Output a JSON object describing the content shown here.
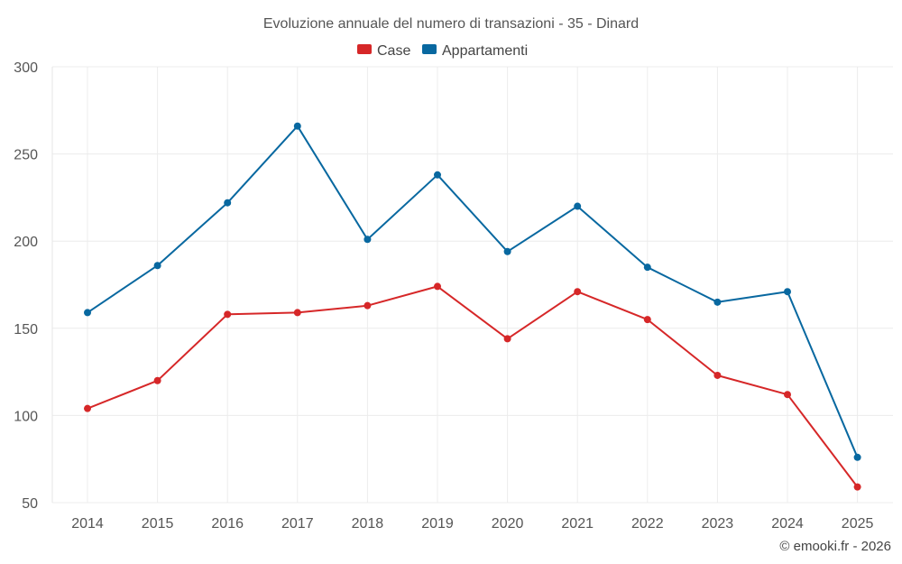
{
  "chart_data": {
    "type": "line",
    "title": "Evoluzione annuale del numero di transazioni - 35 - Dinard",
    "categories": [
      "2014",
      "2015",
      "2016",
      "2017",
      "2018",
      "2019",
      "2020",
      "2021",
      "2022",
      "2023",
      "2024",
      "2025"
    ],
    "series": [
      {
        "name": "Case",
        "color": "#d62728",
        "values": [
          104,
          120,
          158,
          159,
          163,
          174,
          144,
          171,
          155,
          123,
          112,
          59
        ]
      },
      {
        "name": "Appartamenti",
        "color": "#0868a0",
        "values": [
          159,
          186,
          222,
          266,
          201,
          238,
          194,
          220,
          185,
          165,
          171,
          76
        ]
      }
    ],
    "yticks": [
      50,
      100,
      150,
      200,
      250,
      300
    ],
    "ylim": [
      50,
      300
    ],
    "xlabel": "",
    "ylabel": "",
    "grid": true,
    "legend": "top-center"
  },
  "credit": "© emooki.fr - 2026"
}
